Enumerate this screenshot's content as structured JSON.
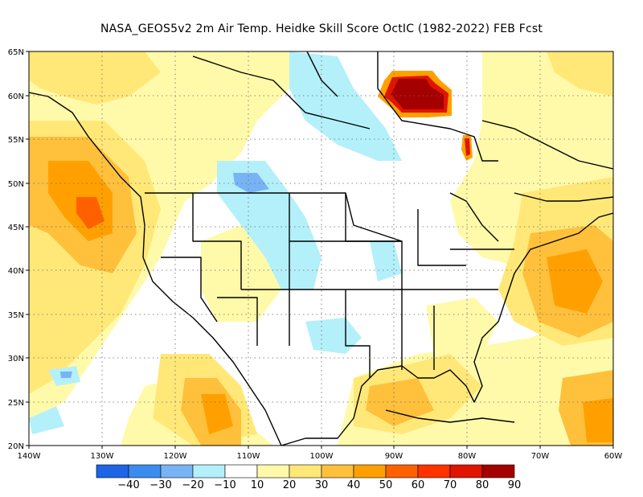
{
  "title": "NASA_GEOS5v2  2m Air Temp. Heidke Skill Score OctIC (1982-2022) FEB Fcst",
  "map": {
    "lon_range": [
      -140,
      -60
    ],
    "lat_range": [
      20,
      65
    ],
    "x_ticks": [
      "140W",
      "130W",
      "120W",
      "110W",
      "100W",
      "90W",
      "80W",
      "70W",
      "60W"
    ],
    "y_ticks": [
      "65N",
      "60N",
      "55N",
      "50N",
      "45N",
      "40N",
      "35N",
      "30N",
      "25N",
      "20N"
    ],
    "grid": "dotted"
  },
  "colorbar": {
    "labels": [
      "−40",
      "−30",
      "−20",
      "−10",
      "10",
      "20",
      "30",
      "40",
      "50",
      "60",
      "70",
      "80",
      "90"
    ],
    "colors": [
      "#1e64e6",
      "#3c8cf0",
      "#78b4f5",
      "#b4f0fa",
      "#ffffff",
      "#fffaaa",
      "#ffe878",
      "#ffc03c",
      "#ffa000",
      "#ff6000",
      "#ff3200",
      "#e11400",
      "#a50000"
    ]
  },
  "fields": {
    "colors": {
      "very_light_yellow": "#fffaaa",
      "light_yellow": "#ffe878",
      "light_orange": "#ffc03c",
      "orange": "#ffa000",
      "dark_orange": "#ff6000",
      "red": "#e11400",
      "dark_red": "#a50000",
      "light_cyan": "#b4f0fa",
      "light_blue": "#78b4f5"
    }
  }
}
